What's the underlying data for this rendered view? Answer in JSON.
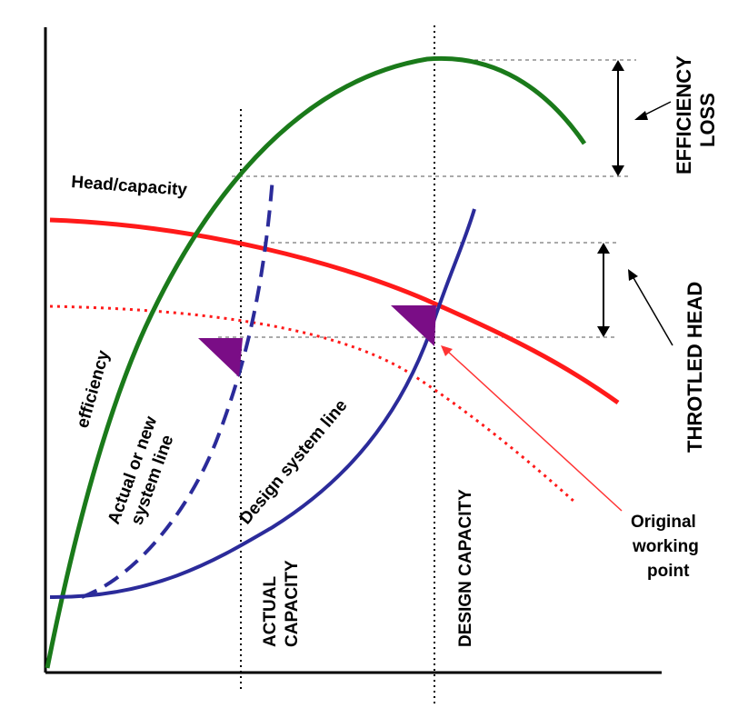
{
  "colors": {
    "efficiency": "#1a7a1a",
    "head_capacity": "#ff1a1a",
    "system_line": "#2b2b9a",
    "marker": "#7a0d86",
    "pointer": "#ff3333",
    "ink": "#000000"
  },
  "icons": [
    "axes",
    "working-point-triangle-icon",
    "double-arrow-icon"
  ],
  "labels": {
    "head_capacity": "Head/capacity",
    "efficiency": "efficiency",
    "actual_system_line_1": "Actual or new",
    "actual_system_line_2": "system line",
    "design_system_line": "Design system line",
    "actual_capacity_1": "ACTUAL",
    "actual_capacity_2": "CAPACITY",
    "design_capacity": "DESIGN CAPACITY",
    "efficiency_loss_1": "EFFICIENCY",
    "efficiency_loss_2": "LOSS",
    "throttled_head": "THROTLED HEAD",
    "original_working_point_1": "Original",
    "original_working_point_2": "working",
    "original_working_point_3": "point"
  }
}
